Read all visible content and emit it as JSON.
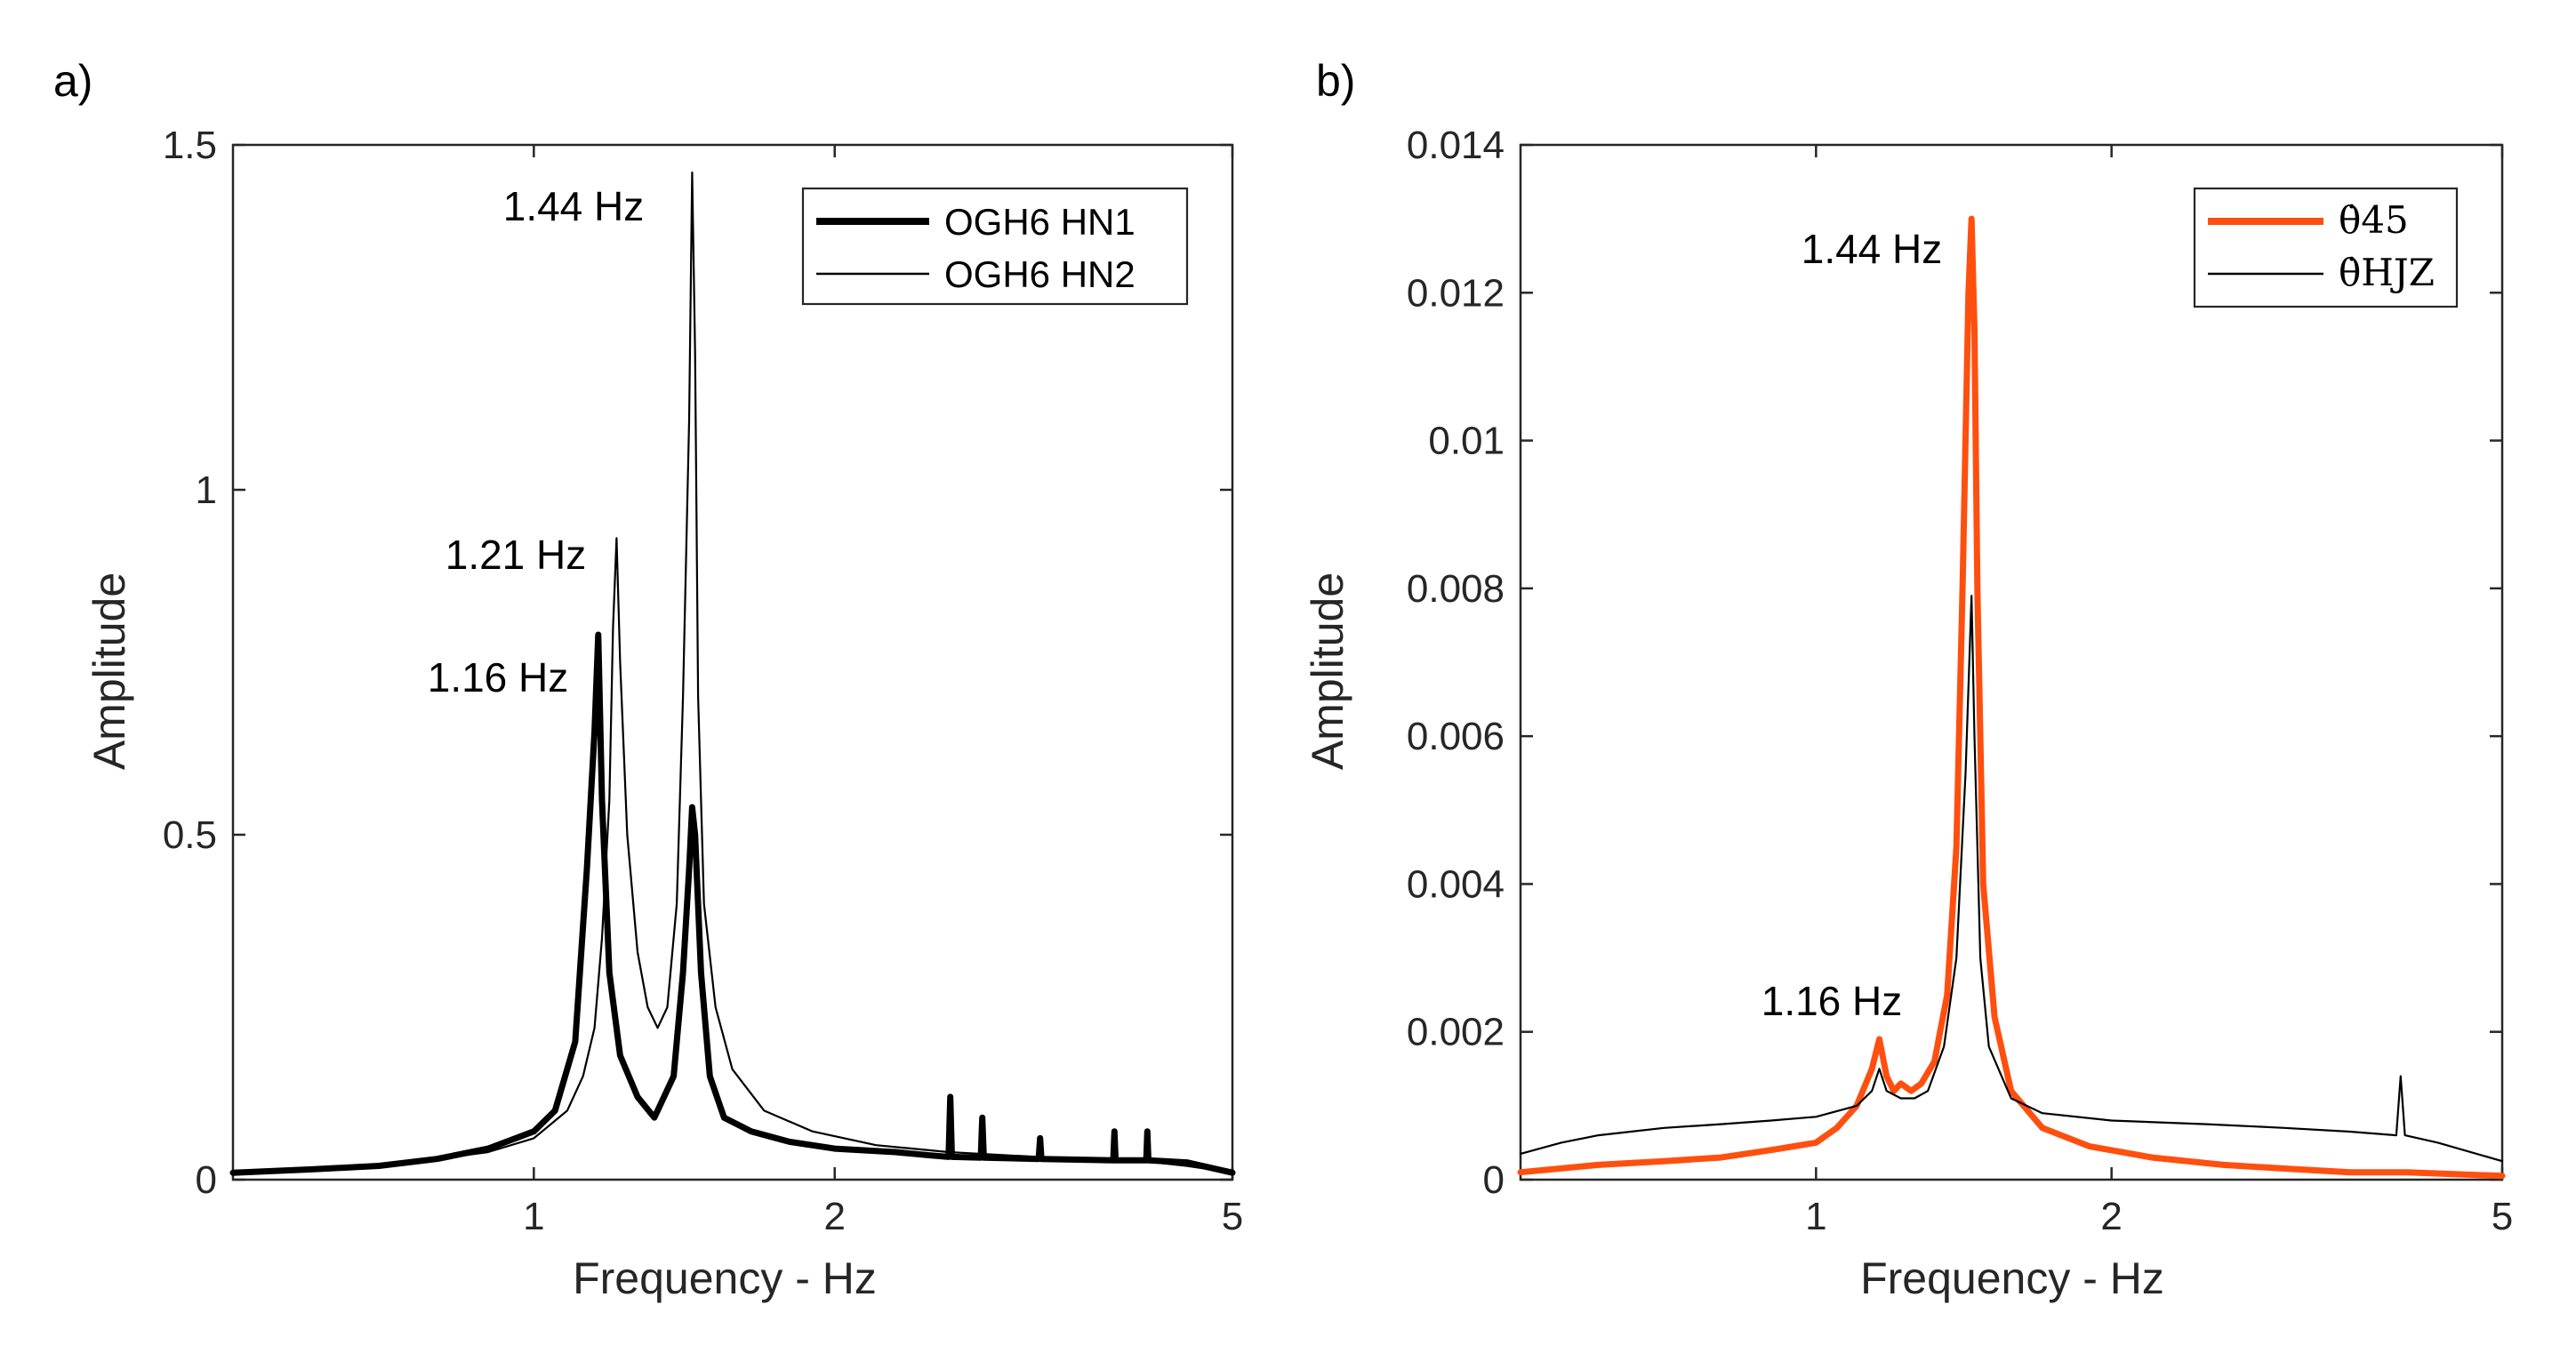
{
  "chart_data": [
    {
      "panel_label": "a)",
      "type": "line",
      "x_scale": "log",
      "xlabel": "Frequency - Hz",
      "ylabel": "Amplitude",
      "xlim": [
        0.5,
        5
      ],
      "ylim": [
        0,
        1.5
      ],
      "xticks": [
        1,
        2,
        5
      ],
      "xtick_labels": [
        "1",
        "2",
        "5"
      ],
      "yticks": [
        0,
        0.5,
        1,
        1.5
      ],
      "ytick_labels": [
        "0",
        "0.5",
        "1",
        "1.5"
      ],
      "legend_position": "top-right",
      "series": [
        {
          "name": "OGH6 HN1",
          "color": "#000000",
          "weight": "thick",
          "points": [
            [
              0.5,
              0.01
            ],
            [
              0.6,
              0.015
            ],
            [
              0.7,
              0.02
            ],
            [
              0.8,
              0.03
            ],
            [
              0.9,
              0.045
            ],
            [
              1.0,
              0.07
            ],
            [
              1.05,
              0.1
            ],
            [
              1.1,
              0.2
            ],
            [
              1.13,
              0.45
            ],
            [
              1.15,
              0.65
            ],
            [
              1.16,
              0.79
            ],
            [
              1.17,
              0.55
            ],
            [
              1.19,
              0.3
            ],
            [
              1.22,
              0.18
            ],
            [
              1.27,
              0.12
            ],
            [
              1.32,
              0.09
            ],
            [
              1.38,
              0.15
            ],
            [
              1.41,
              0.3
            ],
            [
              1.43,
              0.45
            ],
            [
              1.44,
              0.54
            ],
            [
              1.45,
              0.5
            ],
            [
              1.47,
              0.3
            ],
            [
              1.5,
              0.15
            ],
            [
              1.55,
              0.09
            ],
            [
              1.65,
              0.07
            ],
            [
              1.8,
              0.055
            ],
            [
              2.0,
              0.045
            ],
            [
              2.3,
              0.04
            ],
            [
              2.5,
              0.035
            ],
            [
              2.6,
              0.033
            ],
            [
              2.61,
              0.12
            ],
            [
              2.62,
              0.033
            ],
            [
              2.8,
              0.032
            ],
            [
              2.81,
              0.09
            ],
            [
              2.82,
              0.032
            ],
            [
              3.2,
              0.03
            ],
            [
              3.21,
              0.06
            ],
            [
              3.22,
              0.03
            ],
            [
              3.8,
              0.028
            ],
            [
              3.81,
              0.07
            ],
            [
              3.82,
              0.028
            ],
            [
              4.1,
              0.028
            ],
            [
              4.11,
              0.07
            ],
            [
              4.12,
              0.028
            ],
            [
              4.5,
              0.025
            ],
            [
              5.0,
              0.01
            ]
          ]
        },
        {
          "name": "OGH6 HN2",
          "color": "#000000",
          "weight": "thin",
          "points": [
            [
              0.5,
              0.01
            ],
            [
              0.6,
              0.015
            ],
            [
              0.7,
              0.02
            ],
            [
              0.8,
              0.03
            ],
            [
              0.9,
              0.04
            ],
            [
              1.0,
              0.06
            ],
            [
              1.08,
              0.1
            ],
            [
              1.12,
              0.15
            ],
            [
              1.15,
              0.22
            ],
            [
              1.17,
              0.35
            ],
            [
              1.19,
              0.55
            ],
            [
              1.2,
              0.8
            ],
            [
              1.21,
              0.93
            ],
            [
              1.22,
              0.75
            ],
            [
              1.24,
              0.5
            ],
            [
              1.27,
              0.33
            ],
            [
              1.3,
              0.25
            ],
            [
              1.33,
              0.22
            ],
            [
              1.36,
              0.25
            ],
            [
              1.39,
              0.4
            ],
            [
              1.41,
              0.7
            ],
            [
              1.43,
              1.1
            ],
            [
              1.44,
              1.46
            ],
            [
              1.45,
              1.2
            ],
            [
              1.46,
              0.7
            ],
            [
              1.48,
              0.4
            ],
            [
              1.52,
              0.25
            ],
            [
              1.58,
              0.16
            ],
            [
              1.7,
              0.1
            ],
            [
              1.9,
              0.07
            ],
            [
              2.2,
              0.05
            ],
            [
              2.6,
              0.04
            ],
            [
              3.0,
              0.035
            ],
            [
              3.5,
              0.03
            ],
            [
              4.0,
              0.028
            ],
            [
              4.5,
              0.02
            ],
            [
              5.0,
              0.01
            ]
          ]
        }
      ],
      "annotations": [
        "1.44 Hz",
        "1.21 Hz",
        "1.16 Hz"
      ]
    },
    {
      "panel_label": "b)",
      "type": "line",
      "x_scale": "log",
      "xlabel": "Frequency - Hz",
      "ylabel": "Amplitude",
      "xlim": [
        0.5,
        5
      ],
      "ylim": [
        0,
        0.014
      ],
      "xticks": [
        1,
        2,
        5
      ],
      "xtick_labels": [
        "1",
        "2",
        "5"
      ],
      "yticks": [
        0,
        0.002,
        0.004,
        0.006,
        0.008,
        0.01,
        0.012,
        0.014
      ],
      "ytick_labels": [
        "0",
        "0.002",
        "0.004",
        "0.006",
        "0.008",
        "0.01",
        "0.012",
        "0.014"
      ],
      "legend_position": "top-right",
      "series": [
        {
          "name": "θ̇45",
          "color": "#ff4f0f",
          "weight": "thick",
          "points": [
            [
              0.5,
              0.0001
            ],
            [
              0.6,
              0.0002
            ],
            [
              0.7,
              0.00025
            ],
            [
              0.8,
              0.0003
            ],
            [
              0.9,
              0.0004
            ],
            [
              1.0,
              0.0005
            ],
            [
              1.05,
              0.0007
            ],
            [
              1.1,
              0.001
            ],
            [
              1.14,
              0.0015
            ],
            [
              1.16,
              0.0019
            ],
            [
              1.18,
              0.0014
            ],
            [
              1.2,
              0.0012
            ],
            [
              1.22,
              0.0013
            ],
            [
              1.25,
              0.0012
            ],
            [
              1.28,
              0.0013
            ],
            [
              1.32,
              0.0016
            ],
            [
              1.36,
              0.0025
            ],
            [
              1.39,
              0.0045
            ],
            [
              1.41,
              0.008
            ],
            [
              1.43,
              0.012
            ],
            [
              1.44,
              0.013
            ],
            [
              1.45,
              0.0115
            ],
            [
              1.46,
              0.008
            ],
            [
              1.48,
              0.004
            ],
            [
              1.52,
              0.0022
            ],
            [
              1.58,
              0.0012
            ],
            [
              1.7,
              0.0007
            ],
            [
              1.9,
              0.00045
            ],
            [
              2.2,
              0.0003
            ],
            [
              2.6,
              0.0002
            ],
            [
              3.0,
              0.00015
            ],
            [
              3.5,
              0.0001
            ],
            [
              4.0,
              0.0001
            ],
            [
              5.0,
              5e-05
            ]
          ]
        },
        {
          "name": "θ̇HJZ",
          "color": "#000000",
          "weight": "thin",
          "points": [
            [
              0.5,
              0.00035
            ],
            [
              0.55,
              0.0005
            ],
            [
              0.6,
              0.0006
            ],
            [
              0.7,
              0.0007
            ],
            [
              0.8,
              0.00075
            ],
            [
              0.9,
              0.0008
            ],
            [
              1.0,
              0.00085
            ],
            [
              1.1,
              0.001
            ],
            [
              1.14,
              0.0012
            ],
            [
              1.16,
              0.0015
            ],
            [
              1.18,
              0.0012
            ],
            [
              1.22,
              0.0011
            ],
            [
              1.26,
              0.0011
            ],
            [
              1.3,
              0.0012
            ],
            [
              1.35,
              0.0018
            ],
            [
              1.39,
              0.003
            ],
            [
              1.42,
              0.0055
            ],
            [
              1.44,
              0.0079
            ],
            [
              1.45,
              0.006
            ],
            [
              1.47,
              0.003
            ],
            [
              1.5,
              0.0018
            ],
            [
              1.58,
              0.0011
            ],
            [
              1.7,
              0.0009
            ],
            [
              2.0,
              0.0008
            ],
            [
              2.5,
              0.00075
            ],
            [
              3.0,
              0.0007
            ],
            [
              3.5,
              0.00065
            ],
            [
              3.9,
              0.0006
            ],
            [
              3.94,
              0.0014
            ],
            [
              3.98,
              0.0006
            ],
            [
              4.3,
              0.0005
            ],
            [
              5.0,
              0.00025
            ]
          ]
        }
      ],
      "annotations": [
        "1.44 Hz",
        "1.16 Hz"
      ]
    }
  ]
}
